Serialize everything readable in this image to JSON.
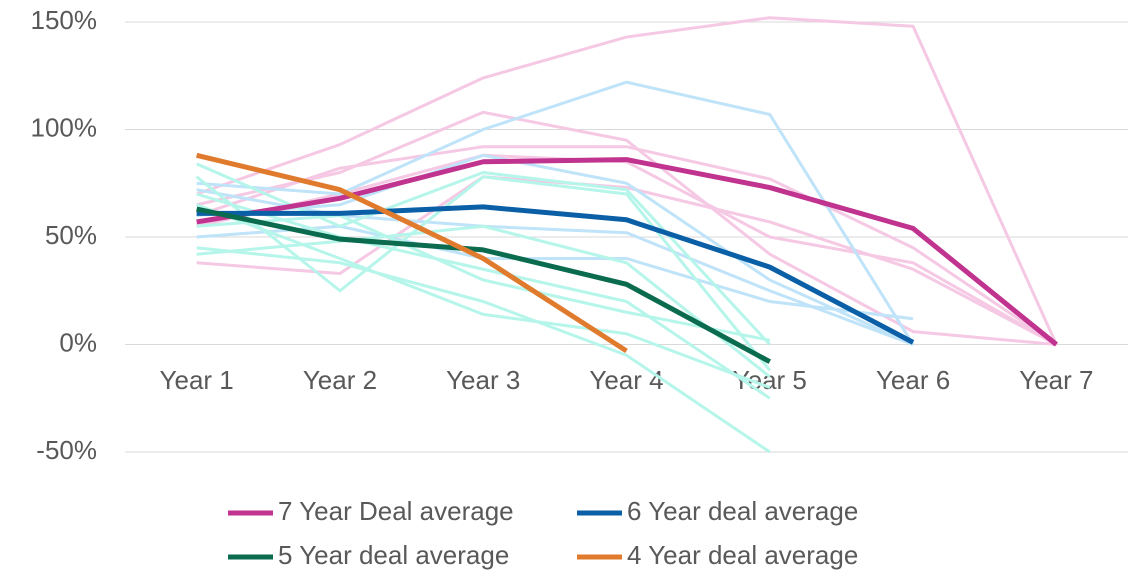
{
  "chart_data": {
    "type": "line",
    "categories": [
      "Year 1",
      "Year 2",
      "Year 3",
      "Year 4",
      "Year 5",
      "Year 6",
      "Year 7"
    ],
    "ylim": [
      -50,
      150
    ],
    "yticks": [
      {
        "value": -50,
        "label": "-50%"
      },
      {
        "value": 0,
        "label": "0%"
      },
      {
        "value": 50,
        "label": "50%"
      },
      {
        "value": 100,
        "label": "100%"
      },
      {
        "value": 150,
        "label": "150%"
      }
    ],
    "grid": true,
    "legend": "bottom",
    "series": [
      {
        "color": "#f5c8e4",
        "values": [
          70,
          93,
          124,
          143,
          152,
          148,
          0
        ]
      },
      {
        "color": "#f5c8e4",
        "values": [
          65,
          80,
          108,
          95,
          42,
          6,
          0
        ]
      },
      {
        "color": "#f5c8e4",
        "values": [
          60,
          82,
          92,
          92,
          77,
          45,
          0
        ]
      },
      {
        "color": "#f5c8e4",
        "values": [
          38,
          33,
          78,
          73,
          57,
          35,
          0
        ]
      },
      {
        "color": "#f5c8e4",
        "values": [
          55,
          70,
          88,
          85,
          50,
          38,
          0
        ]
      },
      {
        "color": "#bfe3f8",
        "values": [
          75,
          70,
          100,
          122,
          107,
          0,
          null
        ]
      },
      {
        "color": "#bfe3f8",
        "values": [
          60,
          65,
          88,
          75,
          30,
          0,
          null
        ]
      },
      {
        "color": "#bfe3f8",
        "values": [
          50,
          55,
          40,
          40,
          20,
          12,
          null
        ]
      },
      {
        "color": "#bfe3f8",
        "values": [
          72,
          60,
          55,
          52,
          25,
          0,
          null
        ]
      },
      {
        "color": "#b5f5ea",
        "values": [
          84,
          55,
          80,
          72,
          0,
          null,
          null
        ]
      },
      {
        "color": "#b5f5ea",
        "values": [
          78,
          25,
          78,
          70,
          -12,
          null,
          null
        ]
      },
      {
        "color": "#b5f5ea",
        "values": [
          45,
          38,
          20,
          -5,
          -50,
          null,
          null
        ]
      },
      {
        "color": "#b5f5ea",
        "values": [
          70,
          50,
          35,
          20,
          -25,
          null,
          null
        ]
      },
      {
        "color": "#b5f5ea",
        "values": [
          42,
          48,
          55,
          38,
          -15,
          null,
          null
        ]
      },
      {
        "color": "#b5f5ea",
        "values": [
          65,
          40,
          14,
          5,
          -20,
          null,
          null
        ]
      },
      {
        "color": "#b5f5ea",
        "values": [
          55,
          60,
          30,
          15,
          2,
          null,
          null
        ]
      },
      {
        "name": "7 Year Deal average",
        "color": "#c0338f",
        "values": [
          57,
          68,
          85,
          86,
          73,
          54,
          0
        ]
      },
      {
        "name": "6 Year deal average",
        "color": "#0a5fa6",
        "values": [
          61,
          61,
          64,
          58,
          36,
          1,
          null
        ]
      },
      {
        "name": "5 Year deal average",
        "color": "#0b6b4e",
        "values": [
          63,
          49,
          44,
          28,
          -8,
          null,
          null
        ]
      },
      {
        "name": "4 Year deal average",
        "color": "#e07b2e",
        "values": [
          88,
          72,
          40,
          -3,
          null,
          null,
          null
        ]
      }
    ]
  }
}
